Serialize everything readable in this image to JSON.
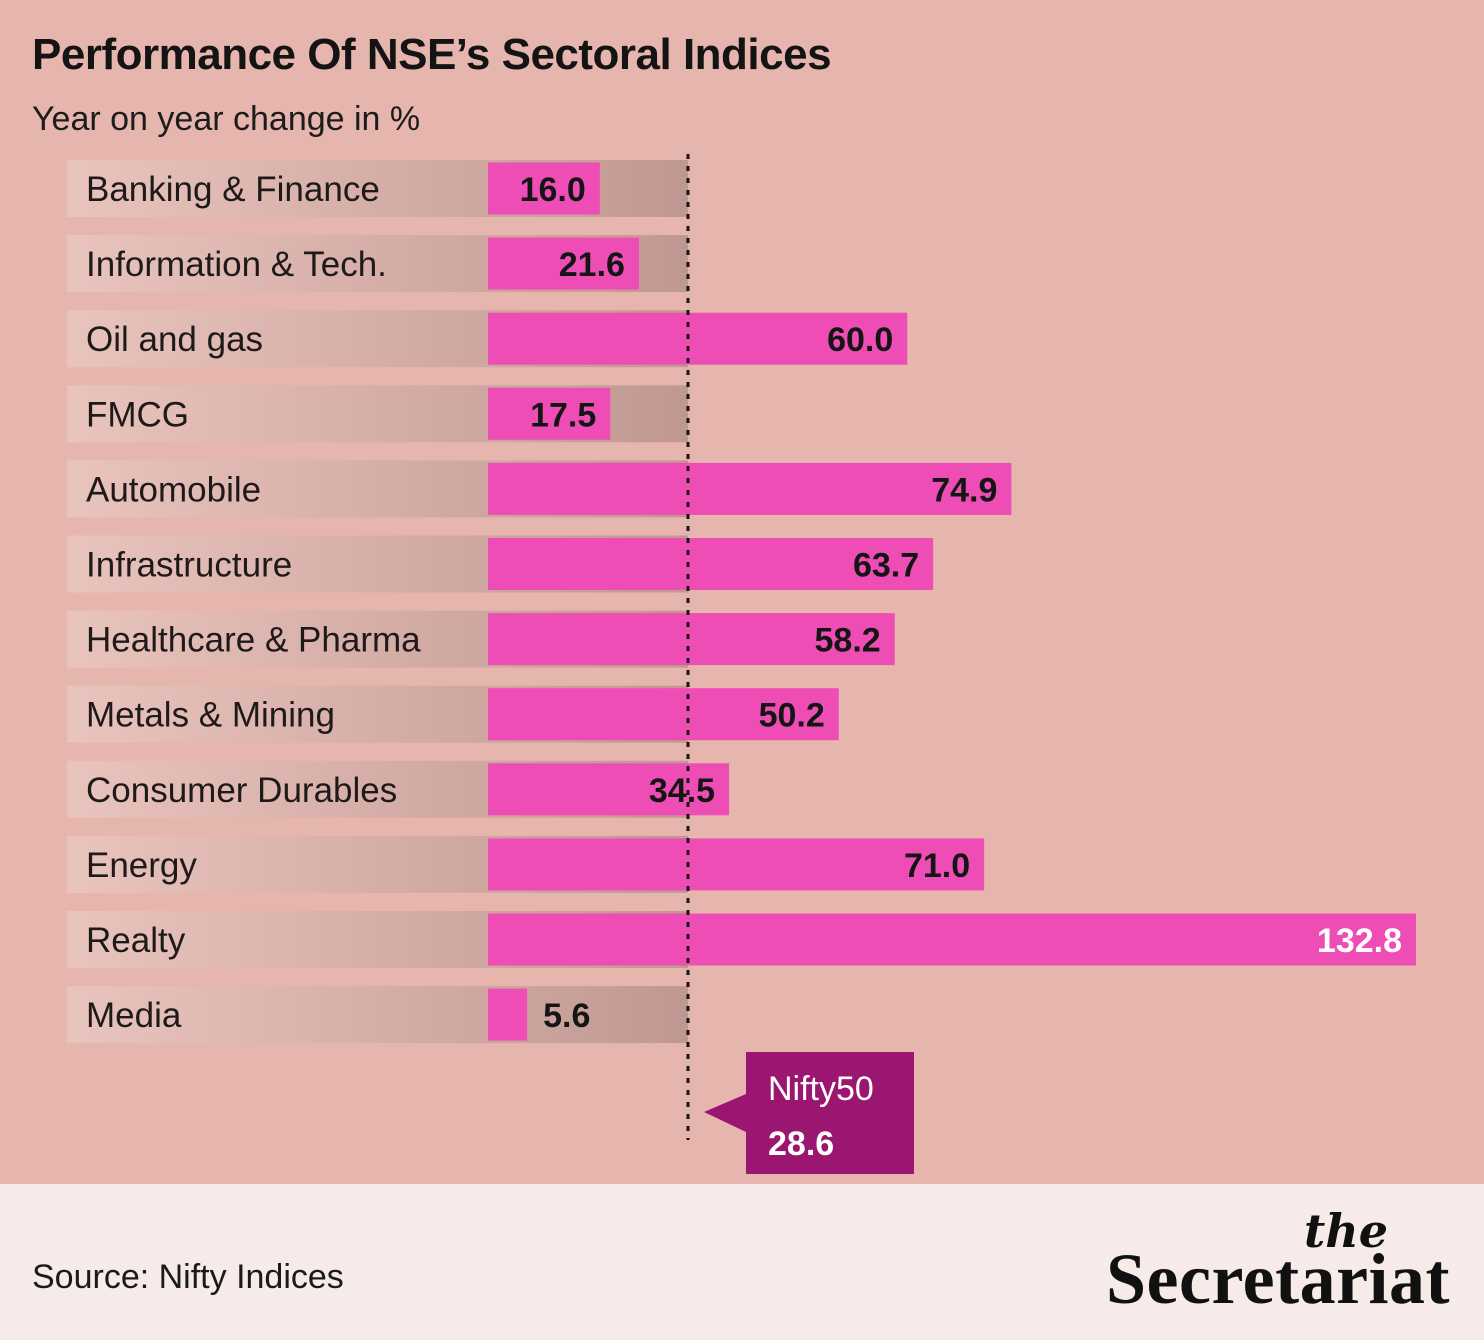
{
  "title": "Performance Of NSE’s Sectoral Indices",
  "subtitle": "Year on year change in %",
  "source": "Source: Nifty Indices",
  "logo": {
    "line1": "the",
    "line2": "Secretariat"
  },
  "colors": {
    "background": "#e6b6ae",
    "bar": "#ee4db5",
    "track": "#c49992",
    "benchmark_box": "#9b1670",
    "footer": "#f6ebe8"
  },
  "chart_data": {
    "type": "bar",
    "orientation": "horizontal",
    "categories": [
      "Banking & Finance",
      "Information & Tech.",
      "Oil and gas",
      "FMCG",
      "Automobile",
      "Infrastructure",
      "Healthcare & Pharma",
      "Metals & Mining",
      "Consumer Durables",
      "Energy",
      "Realty",
      "Media"
    ],
    "values": [
      16.0,
      21.6,
      60.0,
      17.5,
      74.9,
      63.7,
      58.2,
      50.2,
      34.5,
      71.0,
      132.8,
      5.6
    ],
    "value_labels": [
      "16.0",
      "21.6",
      "60.0",
      "17.5",
      "74.9",
      "63.7",
      "58.2",
      "50.2",
      "34.5",
      "71.0",
      "132.8",
      "5.6"
    ],
    "xlim": [
      0,
      132.8
    ],
    "grid": false,
    "reference_line": {
      "label": "Nifty50",
      "value": 28.6,
      "value_label": "28.6"
    }
  }
}
